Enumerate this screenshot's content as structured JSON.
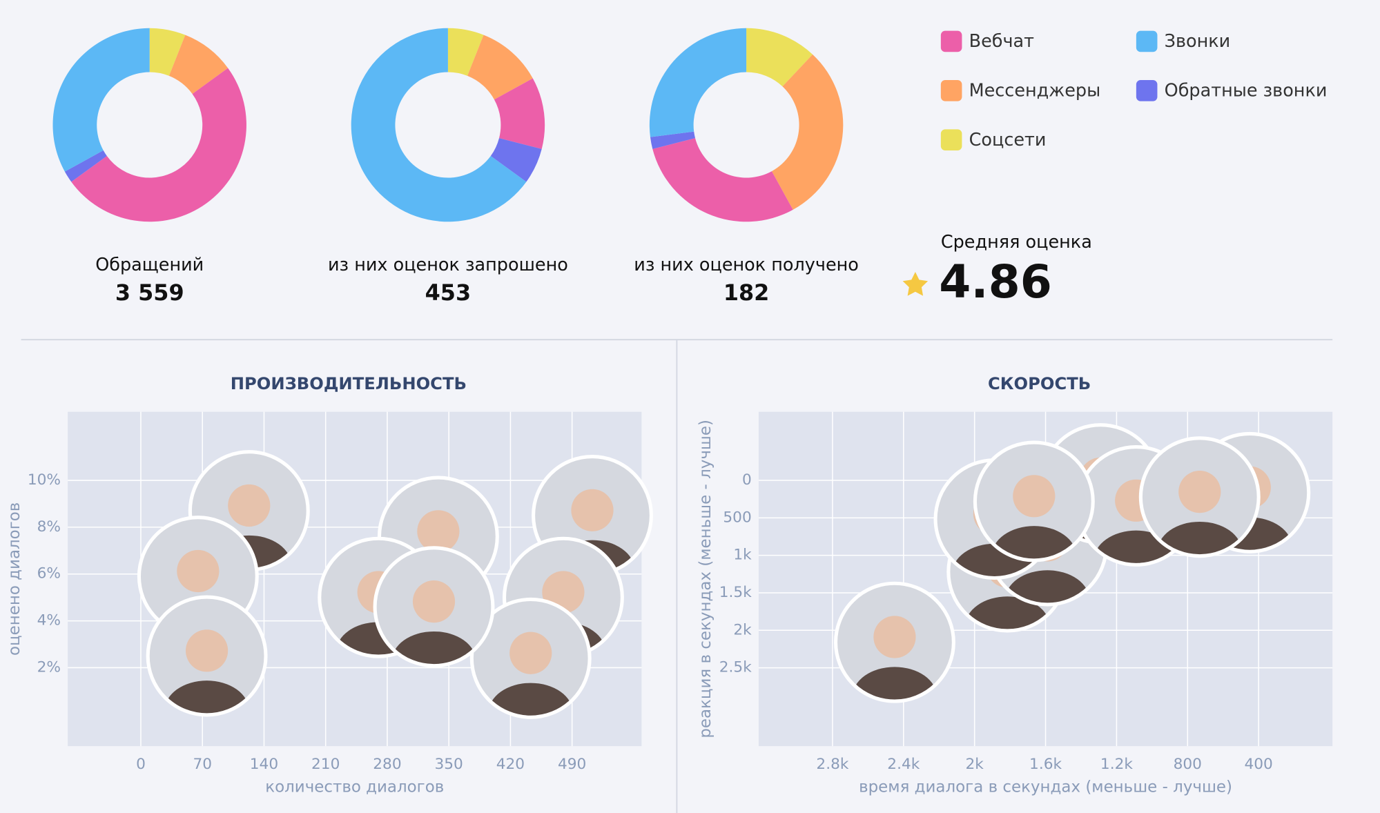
{
  "chart_data": [
    {
      "type": "donut",
      "categories": [
        "Вебчат",
        "Звонки",
        "Мессенджеры",
        "Обратные звонки",
        "Соцсети"
      ],
      "colors": [
        "#ec5fa9",
        "#5cb8f5",
        "#ffa463",
        "#6e74ee",
        "#ebe05a"
      ],
      "series": [
        {
          "name": "Обращений",
          "total": "3 559",
          "values": [
            50,
            33,
            9,
            2,
            6
          ]
        },
        {
          "name": "из них оценок запрошено",
          "total": "453",
          "values": [
            12,
            65,
            11,
            6,
            6
          ]
        },
        {
          "name": "из них оценок получено",
          "total": "182",
          "values": [
            29,
            27,
            30,
            2,
            12
          ]
        }
      ]
    },
    {
      "type": "scatter",
      "title": "ПРОИЗВОДИТЕЛЬНОСТЬ",
      "x_label": "количество диалогов",
      "y_label": "оценено диалогов",
      "x": [
        338,
        123,
        513,
        270,
        480,
        65,
        443,
        333,
        75
      ],
      "values": [
        7.6,
        8.7,
        8.5,
        5.0,
        5.0,
        5.9,
        2.4,
        4.6,
        2.5
      ],
      "xlim": [
        -83,
        569
      ],
      "ylim": [
        -1.35,
        12.93
      ],
      "xticks": [
        0,
        70,
        140,
        210,
        280,
        350,
        420,
        490
      ],
      "yticks": [
        {
          "value": 2,
          "label": "2%"
        },
        {
          "value": 4,
          "label": "4%"
        },
        {
          "value": 6,
          "label": "6%"
        },
        {
          "value": 8,
          "label": "8%"
        },
        {
          "value": 10,
          "label": "10%"
        }
      ],
      "grid": true
    },
    {
      "type": "scatter",
      "title": "СКОРОСТЬ",
      "x_label": "время диалога в секундах (меньше - лучше)",
      "y_label": "реакция в секундах (меньше - лучше)",
      "x": [
        1815,
        1590,
        1290,
        1090,
        450,
        1888,
        732,
        1665,
        2450
      ],
      "values": [
        1220,
        870,
        47,
        340,
        164,
        516,
        223,
        280,
        2160
      ],
      "xlim": [
        3216,
        -16
      ],
      "ylim": [
        3545,
        -915
      ],
      "xticks": [
        {
          "value": 2800,
          "label": "2.8k"
        },
        {
          "value": 2400,
          "label": "2.4k"
        },
        {
          "value": 2000,
          "label": "2k"
        },
        {
          "value": 1600,
          "label": "1.6k"
        },
        {
          "value": 1200,
          "label": "1.2k"
        },
        800,
        400
      ],
      "yticks": [
        0,
        500,
        {
          "value": 1000,
          "label": "1k"
        },
        {
          "value": 1500,
          "label": "1.5k"
        },
        {
          "value": 2000,
          "label": "2k"
        },
        {
          "value": 2500,
          "label": "2.5k"
        }
      ],
      "grid": true
    }
  ],
  "rating": {
    "label": "Средняя оценка",
    "value": 4.86
  }
}
